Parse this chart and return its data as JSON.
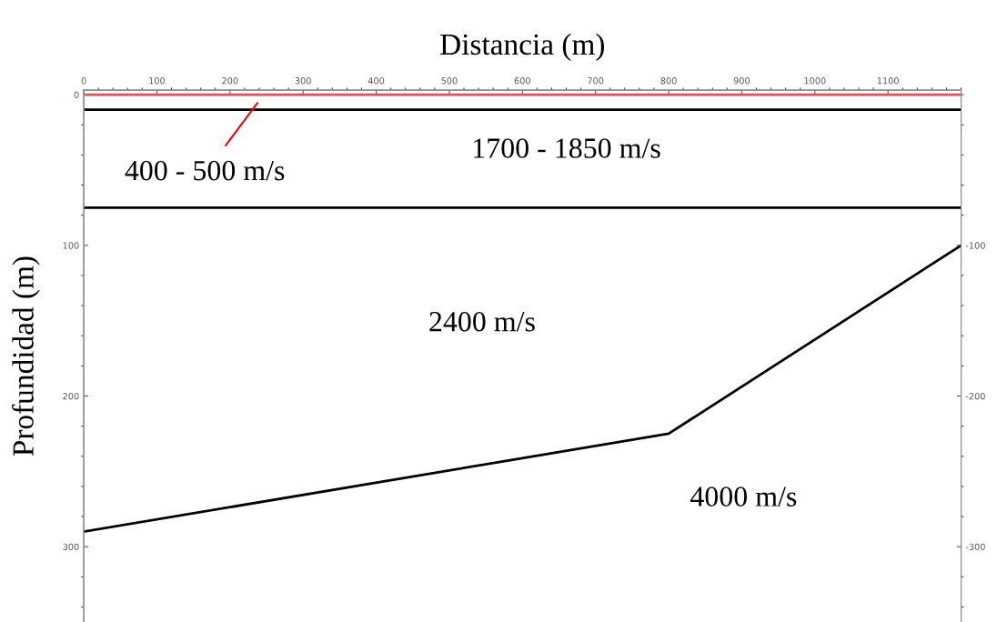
{
  "chart_data": {
    "type": "line",
    "xlabel": "Distancia (m)",
    "ylabel": "Profundidad (m)",
    "series": [
      {
        "color": "#e05050",
        "x": [
          0,
          1200
        ],
        "values": [
          0,
          0
        ]
      },
      {
        "color": "#000000",
        "x": [
          0,
          1200
        ],
        "values": [
          10,
          10
        ]
      },
      {
        "color": "#000000",
        "x": [
          0,
          1200
        ],
        "values": [
          75,
          75
        ]
      },
      {
        "color": "#000000",
        "x": [
          0,
          800,
          1200
        ],
        "values": [
          290,
          225,
          100
        ]
      }
    ],
    "annotations": [
      "400 - 500 m/s",
      "1700 - 1850 m/s",
      "2400 m/s",
      "4000 m/s"
    ],
    "xlim": [
      0,
      1200
    ],
    "xticks": [
      0,
      100,
      200,
      300,
      400,
      500,
      600,
      700,
      800,
      900,
      1000,
      1100
    ],
    "ylim": [
      350,
      -3
    ],
    "yticks": [
      0,
      100,
      200,
      300
    ],
    "y2lim": [
      -350,
      3
    ],
    "y2ticks": [
      -100,
      -200,
      -300
    ],
    "grid": false,
    "marker": "none",
    "line_style": "solid"
  }
}
